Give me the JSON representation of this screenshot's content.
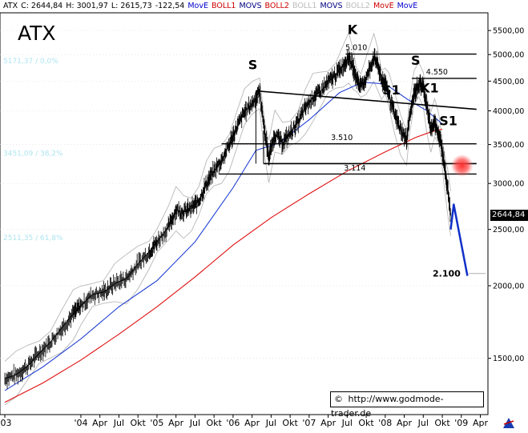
{
  "header": {
    "items": [
      {
        "text": "ATX",
        "color": "#000000"
      },
      {
        "text": "C: 2644,84",
        "color": "#000000"
      },
      {
        "text": "H: 3001,97",
        "color": "#000000"
      },
      {
        "text": "L: 2615,73",
        "color": "#000000"
      },
      {
        "text": "-122,54",
        "color": "#000000"
      },
      {
        "text": "MovE",
        "color": "#0000cc"
      },
      {
        "text": "BOLL1",
        "color": "#cc0000"
      },
      {
        "text": "MOVS",
        "color": "#000080"
      },
      {
        "text": "BOLL2",
        "color": "#cc0000"
      },
      {
        "text": "BOLL1",
        "color": "#bbbbbb"
      },
      {
        "text": "MOVS",
        "color": "#000080"
      },
      {
        "text": "BOLL2",
        "color": "#bbbbbb"
      },
      {
        "text": "MovE",
        "color": "#cc0000"
      },
      {
        "text": "MovE",
        "color": "#0000cc"
      }
    ]
  },
  "chart_data": {
    "type": "line",
    "title": "ATX",
    "scale": "log",
    "ylim": [
      1200,
      5900
    ],
    "xlim": [
      2003.0,
      2009.35
    ],
    "y_ticks": [
      {
        "v": 1500,
        "label": "1500,00"
      },
      {
        "v": 2000,
        "label": "2000,00"
      },
      {
        "v": 2500,
        "label": "2500,00"
      },
      {
        "v": 3000,
        "label": "3000,00"
      },
      {
        "v": 3500,
        "label": "3500,00"
      },
      {
        "v": 4000,
        "label": "4000,00"
      },
      {
        "v": 4500,
        "label": "4500,00"
      },
      {
        "v": 5000,
        "label": "5000,00"
      },
      {
        "v": 5500,
        "label": "5500,00"
      }
    ],
    "x_ticks": [
      {
        "t": 2003.0,
        "label": "'03"
      },
      {
        "t": 2004.0,
        "label": "'04"
      },
      {
        "t": 2004.25,
        "label": "Apr"
      },
      {
        "t": 2004.5,
        "label": "Jul"
      },
      {
        "t": 2004.75,
        "label": "Okt"
      },
      {
        "t": 2005.0,
        "label": "'05"
      },
      {
        "t": 2005.25,
        "label": "Apr"
      },
      {
        "t": 2005.5,
        "label": "Jul"
      },
      {
        "t": 2005.75,
        "label": "Okt"
      },
      {
        "t": 2006.0,
        "label": "'06"
      },
      {
        "t": 2006.25,
        "label": "Apr"
      },
      {
        "t": 2006.5,
        "label": "Jul"
      },
      {
        "t": 2006.75,
        "label": "Okt"
      },
      {
        "t": 2007.0,
        "label": "'07"
      },
      {
        "t": 2007.25,
        "label": "Apr"
      },
      {
        "t": 2007.5,
        "label": "Jul"
      },
      {
        "t": 2007.75,
        "label": "Okt"
      },
      {
        "t": 2008.0,
        "label": "'08"
      },
      {
        "t": 2008.25,
        "label": "Apr"
      },
      {
        "t": 2008.5,
        "label": "Jul"
      },
      {
        "t": 2008.75,
        "label": "Okt"
      },
      {
        "t": 2009.0,
        "label": "'09"
      },
      {
        "t": 2009.25,
        "label": "Apr"
      }
    ],
    "last_price_label": "2644,84",
    "price_path": [
      [
        2003.0,
        1385
      ],
      [
        2003.15,
        1405
      ],
      [
        2003.3,
        1455
      ],
      [
        2003.45,
        1530
      ],
      [
        2003.6,
        1600
      ],
      [
        2003.75,
        1690
      ],
      [
        2003.9,
        1790
      ],
      [
        2004.0,
        1850
      ],
      [
        2004.15,
        1930
      ],
      [
        2004.3,
        1950
      ],
      [
        2004.45,
        2020
      ],
      [
        2004.6,
        2060
      ],
      [
        2004.75,
        2180
      ],
      [
        2004.9,
        2290
      ],
      [
        2005.0,
        2380
      ],
      [
        2005.15,
        2520
      ],
      [
        2005.25,
        2700
      ],
      [
        2005.35,
        2680
      ],
      [
        2005.45,
        2720
      ],
      [
        2005.55,
        2800
      ],
      [
        2005.65,
        3000
      ],
      [
        2005.75,
        3150
      ],
      [
        2005.85,
        3290
      ],
      [
        2005.95,
        3500
      ],
      [
        2006.05,
        3750
      ],
      [
        2006.15,
        3980
      ],
      [
        2006.25,
        4120
      ],
      [
        2006.35,
        4320
      ],
      [
        2006.42,
        3650
      ],
      [
        2006.47,
        3330
      ],
      [
        2006.55,
        3650
      ],
      [
        2006.65,
        3520
      ],
      [
        2006.75,
        3660
      ],
      [
        2006.85,
        3820
      ],
      [
        2006.95,
        4050
      ],
      [
        2007.05,
        4220
      ],
      [
        2007.15,
        4320
      ],
      [
        2007.25,
        4480
      ],
      [
        2007.35,
        4620
      ],
      [
        2007.45,
        4800
      ],
      [
        2007.52,
        4960
      ],
      [
        2007.58,
        4750
      ],
      [
        2007.62,
        4560
      ],
      [
        2007.68,
        4400
      ],
      [
        2007.75,
        4550
      ],
      [
        2007.85,
        4950
      ],
      [
        2007.9,
        4820
      ],
      [
        2007.95,
        4520
      ],
      [
        2008.0,
        4480
      ],
      [
        2008.05,
        4250
      ],
      [
        2008.12,
        3950
      ],
      [
        2008.2,
        3720
      ],
      [
        2008.28,
        3560
      ],
      [
        2008.32,
        3900
      ],
      [
        2008.38,
        4280
      ],
      [
        2008.44,
        4450
      ],
      [
        2008.5,
        4420
      ],
      [
        2008.55,
        4050
      ],
      [
        2008.6,
        3720
      ],
      [
        2008.65,
        3820
      ],
      [
        2008.7,
        3660
      ],
      [
        2008.74,
        3480
      ],
      [
        2008.78,
        3220
      ],
      [
        2008.82,
        2950
      ],
      [
        2008.86,
        2645
      ]
    ],
    "ma_red": [
      [
        2003.0,
        1260
      ],
      [
        2003.5,
        1360
      ],
      [
        2004.0,
        1490
      ],
      [
        2004.5,
        1650
      ],
      [
        2005.0,
        1840
      ],
      [
        2005.5,
        2070
      ],
      [
        2006.0,
        2350
      ],
      [
        2006.5,
        2620
      ],
      [
        2007.0,
        2880
      ],
      [
        2007.5,
        3150
      ],
      [
        2008.0,
        3400
      ],
      [
        2008.4,
        3600
      ],
      [
        2008.6,
        3680
      ],
      [
        2008.75,
        3720
      ]
    ],
    "ma_blue": [
      [
        2003.0,
        1320
      ],
      [
        2003.5,
        1450
      ],
      [
        2004.0,
        1620
      ],
      [
        2004.5,
        1840
      ],
      [
        2005.0,
        2040
      ],
      [
        2005.5,
        2380
      ],
      [
        2006.0,
        2950
      ],
      [
        2006.3,
        3420
      ],
      [
        2006.6,
        3520
      ],
      [
        2007.0,
        3860
      ],
      [
        2007.4,
        4300
      ],
      [
        2007.7,
        4480
      ],
      [
        2008.0,
        4450
      ],
      [
        2008.3,
        4180
      ],
      [
        2008.55,
        4000
      ],
      [
        2008.75,
        3800
      ]
    ],
    "trendlines": [
      {
        "name": "5.010",
        "value": 5010,
        "t0": 2007.48,
        "t1": 2009.2
      },
      {
        "name": "4.550",
        "value": 4550,
        "t0": 2008.35,
        "t1": 2009.2
      },
      {
        "name": "3.510",
        "value": 3510,
        "t0": 2005.85,
        "t1": 2009.2
      },
      {
        "name": "3.114",
        "value": 3114,
        "t0": 2005.82,
        "t1": 2009.2
      }
    ],
    "necklines": [
      {
        "t0": 2006.3,
        "v0": 4330,
        "t1": 2009.2,
        "v1": 4025
      },
      {
        "t0": 2006.4,
        "v0": 3245,
        "t1": 2009.2,
        "v1": 3245
      }
    ],
    "labels": [
      {
        "text": "S",
        "t": 2006.26,
        "v": 4720
      },
      {
        "text": "K",
        "t": 2007.57,
        "v": 5420
      },
      {
        "text": "S",
        "t": 2008.4,
        "v": 4800
      },
      {
        "text": "S1",
        "t": 2008.08,
        "v": 4270
      },
      {
        "text": "K1",
        "t": 2008.58,
        "v": 4300
      },
      {
        "text": "S1",
        "t": 2008.83,
        "v": 3780
      },
      {
        "text": "5.010",
        "t": 2007.62,
        "v": 5090
      },
      {
        "text": "4.550",
        "t": 2008.68,
        "v": 4620
      },
      {
        "text": "3.510",
        "t": 2007.43,
        "v": 3560
      },
      {
        "text": "3.114",
        "t": 2007.6,
        "v": 3160
      }
    ],
    "fib_labels": [
      {
        "text": "5171,37 / 0,0%",
        "v": 4880
      },
      {
        "text": "3451,09 / 38,2%",
        "v": 3380
      },
      {
        "text": "2511,35 / 61,8%",
        "v": 2420
      }
    ],
    "projection": {
      "points": [
        [
          2008.86,
          2500
        ],
        [
          2008.9,
          2760
        ],
        [
          2009.08,
          2080
        ]
      ],
      "target_label": "2.100",
      "target_value": 2100
    },
    "target_dot": {
      "t": 2009.01,
      "v": 3220
    },
    "watermark": "http://www.godmode-trader.de"
  }
}
